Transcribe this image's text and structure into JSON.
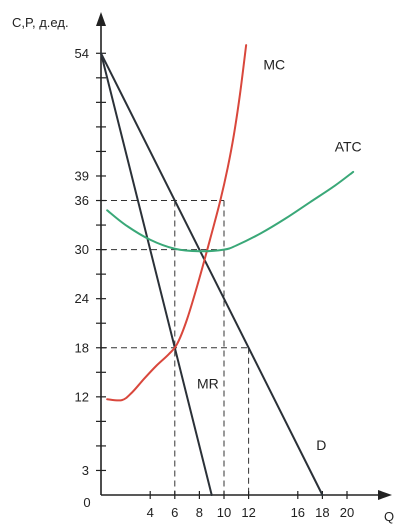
{
  "chart_data": {
    "type": "line",
    "ylabel": "C,P, д.ед.",
    "xlabel": "Q",
    "xlim": [
      0,
      22
    ],
    "ylim": [
      0,
      58
    ],
    "x_ticks": [
      0,
      4,
      6,
      8,
      10,
      12,
      16,
      18,
      20
    ],
    "y_ticks": [
      3,
      12,
      18,
      24,
      30,
      36,
      39,
      54
    ],
    "y_minor_step": 3,
    "series": [
      {
        "name": "D",
        "color": "#2b3138",
        "points": [
          [
            0,
            54
          ],
          [
            18,
            0
          ]
        ]
      },
      {
        "name": "MR",
        "color": "#2b3138",
        "points": [
          [
            0,
            54
          ],
          [
            9,
            0
          ]
        ]
      },
      {
        "name": "MC",
        "color": "#d9473c",
        "points": [
          [
            0.5,
            11.7
          ],
          [
            1.7,
            11.6
          ],
          [
            2.5,
            12.5
          ],
          [
            3.5,
            14.2
          ],
          [
            4.5,
            15.8
          ],
          [
            5.5,
            17.2
          ],
          [
            6.2,
            18.5
          ],
          [
            7,
            21.5
          ],
          [
            8,
            26.5
          ],
          [
            9,
            32
          ],
          [
            9.7,
            36
          ],
          [
            10.3,
            40
          ],
          [
            10.8,
            44
          ],
          [
            11.3,
            49
          ],
          [
            11.8,
            55
          ]
        ]
      },
      {
        "name": "ATC",
        "color": "#3aa878",
        "points": [
          [
            0.5,
            34.8
          ],
          [
            2,
            33
          ],
          [
            4,
            31.2
          ],
          [
            6,
            30.1
          ],
          [
            8,
            29.8
          ],
          [
            10,
            30
          ],
          [
            11,
            30.5
          ],
          [
            13,
            32
          ],
          [
            15,
            33.8
          ],
          [
            17,
            35.8
          ],
          [
            19,
            37.8
          ],
          [
            20.5,
            39.5
          ]
        ]
      }
    ],
    "guides": [
      {
        "from": [
          0,
          36
        ],
        "to": [
          10,
          36
        ]
      },
      {
        "from": [
          10,
          36
        ],
        "to": [
          10,
          0
        ]
      },
      {
        "from": [
          6,
          36
        ],
        "to": [
          6,
          0
        ]
      },
      {
        "from": [
          0,
          30
        ],
        "to": [
          10,
          30
        ]
      },
      {
        "from": [
          0,
          18
        ],
        "to": [
          12,
          18
        ]
      },
      {
        "from": [
          12,
          18
        ],
        "to": [
          12,
          0
        ]
      }
    ],
    "curve_labels": [
      {
        "text": "MC",
        "at": [
          13.2,
          52
        ]
      },
      {
        "text": "ATC",
        "at": [
          19,
          42
        ]
      },
      {
        "text": "MR",
        "at": [
          7.8,
          13
        ]
      },
      {
        "text": "D",
        "at": [
          17.5,
          5.5
        ]
      }
    ]
  }
}
